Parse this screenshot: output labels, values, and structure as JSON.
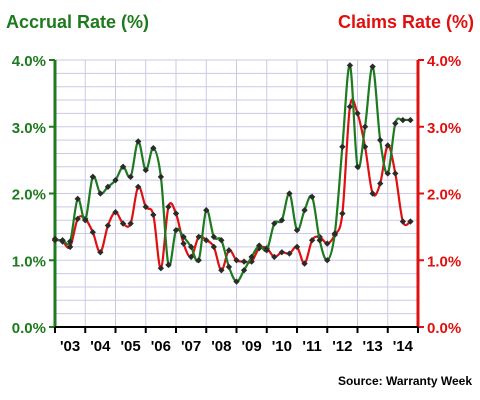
{
  "chart_data": {
    "type": "line",
    "title_left": "Accrual Rate (%)",
    "title_right": "Claims Rate (%)",
    "source": "Source: Warranty Week",
    "x_tick_labels": [
      "'03",
      "'04",
      "'05",
      "'06",
      "'07",
      "'08",
      "'09",
      "'10",
      "'11",
      "'12",
      "'13",
      "'14"
    ],
    "x_range": [
      2003,
      2015
    ],
    "y_left_range": [
      0,
      4
    ],
    "y_right_range": [
      0,
      4
    ],
    "y_left_ticks": [
      "0.0%",
      "1.0%",
      "2.0%",
      "3.0%",
      "4.0%"
    ],
    "y_right_ticks": [
      "0.0%",
      "1.0%",
      "2.0%",
      "3.0%",
      "4.0%"
    ],
    "grid": true,
    "colors": {
      "accrual": "#1e7a1e",
      "claims": "#e01010",
      "grid": "#c9c9e6",
      "axis": "#000000"
    },
    "series": [
      {
        "key": "accrual",
        "axis": "left",
        "x": [
          2003.0,
          2003.25,
          2003.5,
          2003.75,
          2004.0,
          2004.25,
          2004.5,
          2004.75,
          2005.0,
          2005.25,
          2005.5,
          2005.75,
          2006.0,
          2006.25,
          2006.5,
          2006.75,
          2007.0,
          2007.25,
          2007.5,
          2007.75,
          2008.0,
          2008.25,
          2008.5,
          2008.75,
          2009.0,
          2009.25,
          2009.5,
          2009.75,
          2010.0,
          2010.25,
          2010.5,
          2010.75,
          2011.0,
          2011.25,
          2011.5,
          2011.75,
          2012.0,
          2012.25,
          2012.5,
          2012.75,
          2013.0,
          2013.25,
          2013.5,
          2013.75,
          2014.0,
          2014.25,
          2014.5,
          2014.75
        ],
        "values": [
          1.3,
          1.3,
          1.28,
          1.92,
          1.6,
          2.25,
          2.0,
          2.1,
          2.2,
          2.4,
          2.25,
          2.78,
          2.35,
          2.68,
          2.25,
          0.93,
          1.45,
          1.35,
          1.2,
          1.0,
          1.75,
          1.35,
          1.3,
          0.9,
          0.68,
          0.85,
          1.05,
          1.22,
          1.15,
          1.55,
          1.6,
          2.0,
          1.45,
          1.75,
          1.95,
          1.3,
          1.0,
          1.4,
          2.7,
          3.92,
          2.4,
          3.0,
          3.9,
          2.8,
          2.3,
          3.05,
          3.1,
          3.1
        ]
      },
      {
        "key": "claims",
        "axis": "right",
        "x": [
          2003.0,
          2003.25,
          2003.5,
          2003.75,
          2004.0,
          2004.25,
          2004.5,
          2004.75,
          2005.0,
          2005.25,
          2005.5,
          2005.75,
          2006.0,
          2006.25,
          2006.5,
          2006.75,
          2007.0,
          2007.25,
          2007.5,
          2007.75,
          2008.0,
          2008.25,
          2008.5,
          2008.75,
          2009.0,
          2009.25,
          2009.5,
          2009.75,
          2010.0,
          2010.25,
          2010.5,
          2010.75,
          2011.0,
          2011.25,
          2011.5,
          2011.75,
          2012.0,
          2012.25,
          2012.5,
          2012.75,
          2013.0,
          2013.25,
          2013.5,
          2013.75,
          2014.0,
          2014.25,
          2014.5,
          2014.75
        ],
        "values": [
          1.32,
          1.28,
          1.2,
          1.62,
          1.62,
          1.42,
          1.12,
          1.52,
          1.72,
          1.55,
          1.55,
          2.1,
          1.8,
          1.68,
          0.88,
          1.8,
          1.7,
          1.25,
          1.05,
          1.35,
          1.3,
          1.2,
          0.85,
          1.15,
          1.0,
          0.98,
          0.98,
          1.18,
          1.18,
          1.05,
          1.12,
          1.1,
          1.2,
          0.95,
          1.3,
          1.35,
          1.25,
          1.38,
          1.7,
          3.3,
          3.2,
          2.7,
          2.0,
          2.15,
          2.72,
          2.3,
          1.58,
          1.58
        ]
      }
    ]
  }
}
